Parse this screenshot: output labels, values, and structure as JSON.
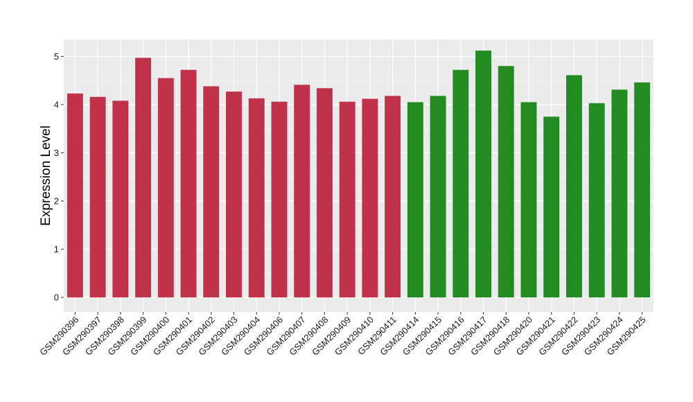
{
  "chart_data": {
    "type": "bar",
    "title": "",
    "xlabel": "",
    "ylabel": "Expression Level",
    "ylim": [
      -0.3,
      5.35
    ],
    "yticks": [
      0,
      1,
      2,
      3,
      4,
      5
    ],
    "grid": true,
    "background": "#ebebeb",
    "categories": [
      "GSM290396",
      "GSM290397",
      "GSM290398",
      "GSM290399",
      "GSM290400",
      "GSM290401",
      "GSM290402",
      "GSM290403",
      "GSM290404",
      "GSM290406",
      "GSM290407",
      "GSM290408",
      "GSM290409",
      "GSM290410",
      "GSM290411",
      "GSM290414",
      "GSM290415",
      "GSM290416",
      "GSM290417",
      "GSM290418",
      "GSM290420",
      "GSM290421",
      "GSM290422",
      "GSM290423",
      "GSM290424",
      "GSM290425"
    ],
    "values": [
      4.23,
      4.16,
      4.08,
      4.97,
      4.55,
      4.72,
      4.38,
      4.27,
      4.13,
      4.06,
      4.41,
      4.34,
      4.06,
      4.12,
      4.18,
      4.05,
      4.18,
      4.72,
      5.12,
      4.8,
      4.05,
      3.75,
      4.61,
      4.03,
      4.31,
      4.46
    ],
    "bar_colors": [
      "#c0314a",
      "#c0314a",
      "#c0314a",
      "#c0314a",
      "#c0314a",
      "#c0314a",
      "#c0314a",
      "#c0314a",
      "#c0314a",
      "#c0314a",
      "#c0314a",
      "#c0314a",
      "#c0314a",
      "#c0314a",
      "#c0314a",
      "#228b22",
      "#228b22",
      "#228b22",
      "#228b22",
      "#228b22",
      "#228b22",
      "#228b22",
      "#228b22",
      "#228b22",
      "#228b22",
      "#228b22"
    ]
  }
}
